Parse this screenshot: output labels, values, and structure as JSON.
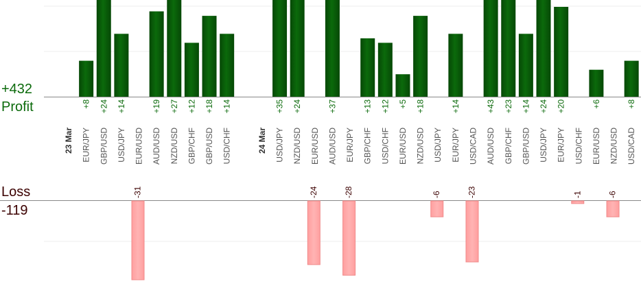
{
  "summary": {
    "profit_total": "+432",
    "profit_label": "Profit",
    "loss_label": "Loss",
    "loss_total": "-119"
  },
  "colors": {
    "profit_bar": "#0b6a0b",
    "profit_bar_dark": "#064806",
    "profit_text": "#0b6a0b",
    "loss_bar": "#ffb3b3",
    "loss_bar_border": "#f08a8a",
    "loss_text": "#3b0000",
    "axis": "#888888",
    "grid": "#eeeeee"
  },
  "chart_data": {
    "type": "bar",
    "grid": true,
    "profit_ylim": [
      0,
      50
    ],
    "loss_ylim": [
      0,
      30
    ],
    "items": [
      {
        "kind": "date",
        "label": "23 Mar"
      },
      {
        "kind": "bar",
        "label": "EUR/JPY",
        "value": 8
      },
      {
        "kind": "bar",
        "label": "GBP/USD",
        "value": 24
      },
      {
        "kind": "bar",
        "label": "USD/JPY",
        "value": 14
      },
      {
        "kind": "bar",
        "label": "EUR/USD",
        "value": -31
      },
      {
        "kind": "bar",
        "label": "AUD/USD",
        "value": 19
      },
      {
        "kind": "bar",
        "label": "NZD/USD",
        "value": 27
      },
      {
        "kind": "bar",
        "label": "GBP/CHF",
        "value": 12
      },
      {
        "kind": "bar",
        "label": "GBP/USD",
        "value": 18
      },
      {
        "kind": "bar",
        "label": "USD/CHF",
        "value": 14
      },
      {
        "kind": "gap"
      },
      {
        "kind": "date",
        "label": "24 Mar"
      },
      {
        "kind": "bar",
        "label": "USD/JPY",
        "value": 35
      },
      {
        "kind": "bar",
        "label": "NZD/USD",
        "value": 24
      },
      {
        "kind": "bar",
        "label": "EUR/USD",
        "value": -24
      },
      {
        "kind": "bar",
        "label": "AUD/USD",
        "value": 37
      },
      {
        "kind": "bar",
        "label": "EUR/JPY",
        "value": -28
      },
      {
        "kind": "bar",
        "label": "GBP/CHF",
        "value": 13
      },
      {
        "kind": "bar",
        "label": "USD/CHF",
        "value": 12
      },
      {
        "kind": "bar",
        "label": "EUR/USD",
        "value": 5
      },
      {
        "kind": "bar",
        "label": "NZD/USD",
        "value": 18
      },
      {
        "kind": "bar",
        "label": "USD/JPY",
        "value": -6
      },
      {
        "kind": "bar",
        "label": "EUR/JPY",
        "value": 14
      },
      {
        "kind": "bar",
        "label": "USD/CAD",
        "value": -23
      },
      {
        "kind": "bar",
        "label": "AUD/USD",
        "value": 43
      },
      {
        "kind": "bar",
        "label": "GBP/CHF",
        "value": 23
      },
      {
        "kind": "bar",
        "label": "GBP/USD",
        "value": 14
      },
      {
        "kind": "bar",
        "label": "USD/JPY",
        "value": 24
      },
      {
        "kind": "bar",
        "label": "EUR/JPY",
        "value": 20
      },
      {
        "kind": "bar",
        "label": "USD/CHF",
        "value": -1
      },
      {
        "kind": "bar",
        "label": "EUR/USD",
        "value": 6
      },
      {
        "kind": "bar",
        "label": "NZD/USD",
        "value": -6
      },
      {
        "kind": "bar",
        "label": "USD/CAD",
        "value": 8
      }
    ]
  }
}
